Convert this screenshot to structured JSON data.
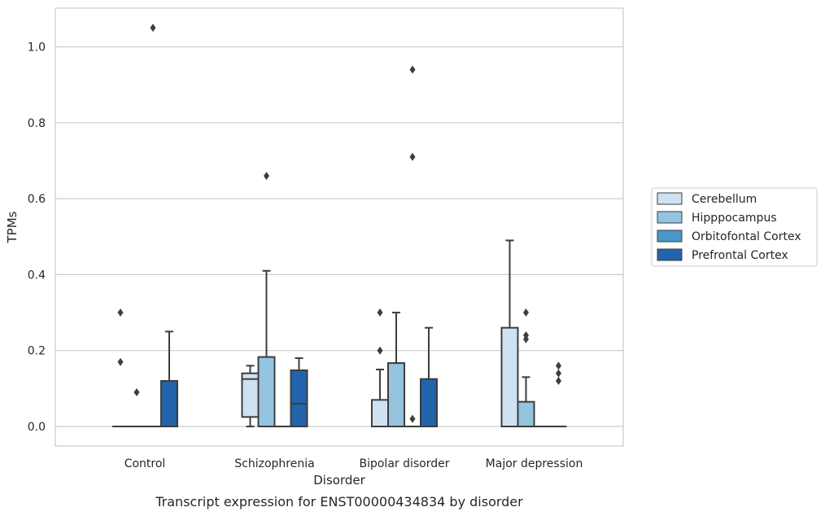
{
  "chart_data": {
    "type": "box",
    "caption": "Transcript expression for ENST00000434834 by disorder",
    "xlabel": "Disorder",
    "ylabel": "TPMs",
    "ylim": [
      -0.05,
      1.1
    ],
    "yticks": [
      "0.0",
      "0.2",
      "0.4",
      "0.6",
      "0.8",
      "1.0"
    ],
    "grid": "horizontal",
    "legend_position": "right",
    "categories": [
      "Control",
      "Schizophrenia",
      "Bipolar disorder",
      "Major depression"
    ],
    "series": [
      {
        "name": "Cerebellum",
        "color": "#d0e1f2",
        "boxes": [
          {
            "min": 0,
            "q1": 0,
            "median": 0,
            "q3": 0,
            "max": 0,
            "outliers": [
              0.3,
              0.17
            ]
          },
          {
            "min": 0,
            "q1": 0.025,
            "median": 0.125,
            "q3": 0.14,
            "max": 0.16,
            "outliers": []
          },
          {
            "min": 0,
            "q1": 0,
            "median": 0,
            "q3": 0.07,
            "max": 0.15,
            "outliers": [
              0.3,
              0.2
            ]
          },
          {
            "min": 0,
            "q1": 0,
            "median": 0,
            "q3": 0.26,
            "max": 0.49,
            "outliers": []
          }
        ]
      },
      {
        "name": "Hipppocampus",
        "color": "#94c4df",
        "boxes": [
          {
            "min": 0,
            "q1": 0,
            "median": 0,
            "q3": 0,
            "max": 0,
            "outliers": [
              0.09
            ]
          },
          {
            "min": 0,
            "q1": 0,
            "median": 0,
            "q3": 0.183,
            "max": 0.41,
            "outliers": [
              0.66
            ]
          },
          {
            "min": 0,
            "q1": 0,
            "median": 0,
            "q3": 0.167,
            "max": 0.3,
            "outliers": []
          },
          {
            "min": 0,
            "q1": 0,
            "median": 0,
            "q3": 0.065,
            "max": 0.13,
            "outliers": [
              0.3,
              0.24,
              0.23
            ]
          }
        ]
      },
      {
        "name": "Orbitofontal Cortex",
        "color": "#4a98c9",
        "boxes": [
          {
            "min": 0,
            "q1": 0,
            "median": 0,
            "q3": 0,
            "max": 0,
            "outliers": [
              1.05
            ]
          },
          {
            "min": 0,
            "q1": 0,
            "median": 0,
            "q3": 0,
            "max": 0,
            "outliers": []
          },
          {
            "min": 0,
            "q1": 0,
            "median": 0,
            "q3": 0,
            "max": 0,
            "outliers": [
              0.94,
              0.71,
              0.02
            ]
          },
          {
            "min": 0,
            "q1": 0,
            "median": 0,
            "q3": 0,
            "max": 0,
            "outliers": []
          }
        ]
      },
      {
        "name": "Prefrontal Cortex",
        "color": "#2264ab",
        "boxes": [
          {
            "min": 0,
            "q1": 0,
            "median": 0,
            "q3": 0.12,
            "max": 0.25,
            "outliers": []
          },
          {
            "min": 0,
            "q1": 0,
            "median": 0.06,
            "q3": 0.148,
            "max": 0.18,
            "outliers": []
          },
          {
            "min": 0,
            "q1": 0,
            "median": 0,
            "q3": 0.125,
            "max": 0.26,
            "outliers": []
          },
          {
            "min": 0,
            "q1": 0,
            "median": 0,
            "q3": 0,
            "max": 0,
            "outliers": [
              0.16,
              0.14,
              0.12
            ]
          }
        ]
      }
    ]
  }
}
